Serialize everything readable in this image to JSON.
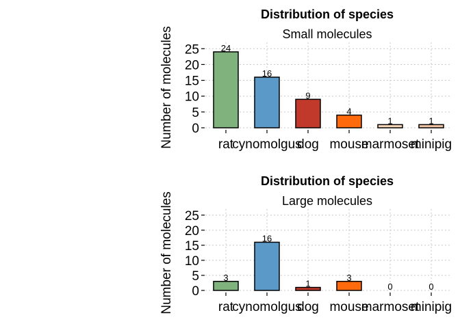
{
  "chart_data": [
    {
      "type": "bar",
      "title": "Distribution of species",
      "subtitle": "Small molecules",
      "xlabel": "",
      "ylabel": "Number of molecules",
      "ylim": [
        0,
        27
      ],
      "yticks": [
        0,
        5,
        10,
        15,
        20,
        25
      ],
      "grid": true,
      "categories": [
        "rat",
        "cynomolgus",
        "dog",
        "mouse",
        "marmoset",
        "minipig"
      ],
      "values": [
        24,
        16,
        9,
        4,
        1,
        1
      ],
      "colors": [
        "#80b27e",
        "#5b9ac8",
        "#c0392b",
        "#ff6a0d",
        "#f8d7b8",
        "#f2c3a2"
      ]
    },
    {
      "type": "bar",
      "title": "Distribution of species",
      "subtitle": "Large molecules",
      "xlabel": "",
      "ylabel": "Number of molecules",
      "ylim": [
        0,
        27
      ],
      "yticks": [
        0,
        5,
        10,
        15,
        20,
        25
      ],
      "grid": true,
      "categories": [
        "rat",
        "cynomolgus",
        "dog",
        "mouse",
        "marmoset",
        "minipig"
      ],
      "values": [
        3,
        16,
        1,
        3,
        0,
        0
      ],
      "colors": [
        "#80b27e",
        "#5b9ac8",
        "#c0392b",
        "#ff6a0d",
        "#f8d7b8",
        "#f2c3a2"
      ]
    }
  ]
}
